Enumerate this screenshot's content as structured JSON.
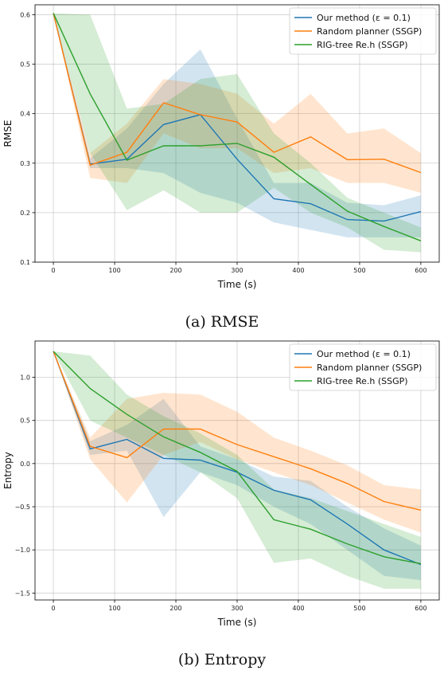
{
  "chart_data": [
    {
      "type": "line",
      "caption": "(a) RMSE",
      "xlabel": "Time (s)",
      "ylabel": "RMSE",
      "xlim": [
        -30,
        630
      ],
      "ylim": [
        0.1,
        0.62
      ],
      "xticks": [
        0,
        100,
        200,
        300,
        400,
        500,
        600
      ],
      "yticks": [
        0.1,
        0.2,
        0.3,
        0.4,
        0.5,
        0.6
      ],
      "ytick_labels": [
        "0.1",
        "0.2",
        "0.3",
        "0.4",
        "0.5",
        "0.6"
      ],
      "grid": true,
      "legend": "top-right",
      "x": [
        0,
        60,
        120,
        180,
        240,
        300,
        360,
        420,
        480,
        540,
        600
      ],
      "series": [
        {
          "name": "Our method (ε = 0.1)",
          "color": "#1f77b4",
          "values": [
            0.603,
            0.298,
            0.308,
            0.378,
            0.398,
            0.308,
            0.228,
            0.218,
            0.186,
            0.183,
            0.202
          ],
          "lower": [
            0.603,
            0.29,
            0.29,
            0.28,
            0.24,
            0.22,
            0.18,
            0.165,
            0.15,
            0.15,
            0.15
          ],
          "upper": [
            0.603,
            0.31,
            0.37,
            0.46,
            0.53,
            0.39,
            0.26,
            0.26,
            0.22,
            0.215,
            0.235
          ]
        },
        {
          "name": "Random planner (SSGP)",
          "color": "#ff7f0e",
          "values": [
            0.603,
            0.296,
            0.322,
            0.422,
            0.398,
            0.383,
            0.322,
            0.353,
            0.307,
            0.308,
            0.281
          ],
          "lower": [
            0.603,
            0.27,
            0.26,
            0.36,
            0.33,
            0.33,
            0.28,
            0.29,
            0.26,
            0.26,
            0.24
          ],
          "upper": [
            0.603,
            0.32,
            0.38,
            0.47,
            0.46,
            0.44,
            0.38,
            0.44,
            0.36,
            0.37,
            0.32
          ]
        },
        {
          "name": "RIG-tree Re.h (SSGP)",
          "color": "#2ca02c",
          "values": [
            0.603,
            0.44,
            0.306,
            0.335,
            0.335,
            0.34,
            0.312,
            0.257,
            0.203,
            0.172,
            0.143
          ],
          "lower": [
            0.603,
            0.32,
            0.205,
            0.245,
            0.2,
            0.2,
            0.25,
            0.2,
            0.17,
            0.125,
            0.12
          ],
          "upper": [
            0.603,
            0.6,
            0.41,
            0.42,
            0.47,
            0.48,
            0.36,
            0.3,
            0.23,
            0.2,
            0.17
          ]
        }
      ]
    },
    {
      "type": "line",
      "caption": "(b) Entropy",
      "xlabel": "Time (s)",
      "ylabel": "Entropy",
      "xlim": [
        -30,
        630
      ],
      "ylim": [
        -1.58,
        1.42
      ],
      "xticks": [
        0,
        100,
        200,
        300,
        400,
        500,
        600
      ],
      "yticks": [
        -1.5,
        -1.0,
        -0.5,
        0.0,
        0.5,
        1.0
      ],
      "ytick_labels": [
        "−1.5",
        "−1.0",
        "−0.5",
        "0.0",
        "0.5",
        "1.0"
      ],
      "grid": true,
      "legend": "top-right",
      "x": [
        0,
        60,
        120,
        180,
        240,
        300,
        360,
        420,
        480,
        540,
        600
      ],
      "series": [
        {
          "name": "Our method (ε = 0.1)",
          "color": "#1f77b4",
          "values": [
            1.3,
            0.17,
            0.28,
            0.06,
            0.04,
            -0.1,
            -0.31,
            -0.42,
            -0.7,
            -1.0,
            -1.17
          ],
          "lower": [
            1.3,
            0.1,
            0.15,
            -0.62,
            -0.1,
            -0.25,
            -0.5,
            -0.7,
            -1.0,
            -1.3,
            -1.35
          ],
          "upper": [
            1.3,
            0.26,
            0.45,
            0.75,
            0.2,
            0.05,
            -0.15,
            -0.2,
            -0.5,
            -0.75,
            -0.95
          ]
        },
        {
          "name": "Random planner (SSGP)",
          "color": "#ff7f0e",
          "values": [
            1.3,
            0.2,
            0.07,
            0.4,
            0.4,
            0.22,
            0.08,
            -0.06,
            -0.23,
            -0.44,
            -0.54
          ],
          "lower": [
            1.3,
            0.05,
            -0.45,
            0.1,
            0.25,
            0.05,
            -0.1,
            -0.25,
            -0.45,
            -0.65,
            -0.8
          ],
          "upper": [
            1.3,
            0.3,
            0.75,
            0.82,
            0.8,
            0.6,
            0.3,
            0.15,
            -0.02,
            -0.25,
            -0.3
          ]
        },
        {
          "name": "RIG-tree Re.h (SSGP)",
          "color": "#2ca02c",
          "values": [
            1.3,
            0.87,
            0.57,
            0.31,
            0.13,
            -0.09,
            -0.65,
            -0.76,
            -0.93,
            -1.08,
            -1.16
          ],
          "lower": [
            1.3,
            0.5,
            0.3,
            0.1,
            -0.1,
            -0.4,
            -1.15,
            -1.1,
            -1.3,
            -1.45,
            -1.45
          ],
          "upper": [
            1.3,
            1.25,
            0.8,
            0.55,
            0.35,
            0.1,
            -0.3,
            -0.4,
            -0.55,
            -0.7,
            -0.85
          ]
        }
      ]
    }
  ]
}
